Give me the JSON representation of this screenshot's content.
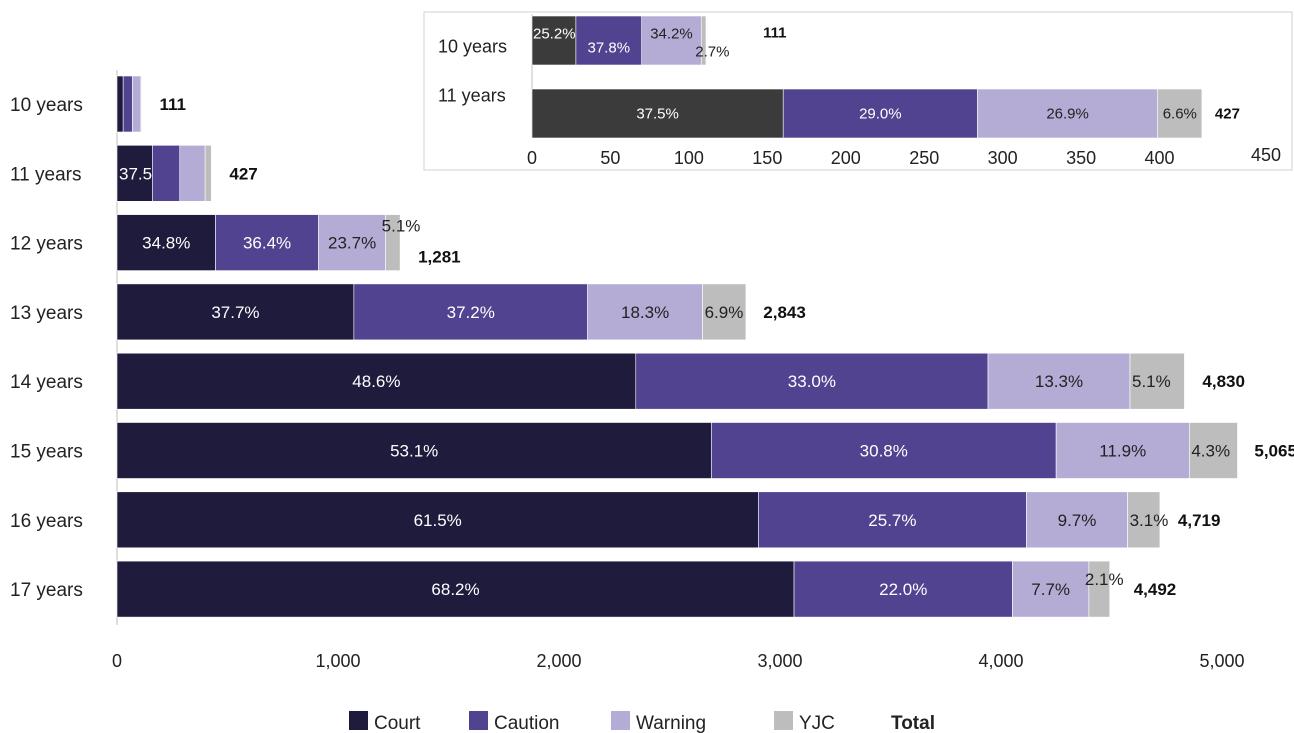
{
  "chart_data": [
    {
      "type": "bar",
      "orientation": "horizontal",
      "stacked": true,
      "categories": [
        "10 years",
        "11 years",
        "12 years",
        "13 years",
        "14 years",
        "15 years",
        "16 years",
        "17 years"
      ],
      "xlim": [
        0,
        5000
      ],
      "xticks": [
        "0",
        "1,000",
        "2,000",
        "3,000",
        "4,000",
        "5,000"
      ],
      "tick_values": [
        0,
        1000,
        2000,
        3000,
        4000,
        5000
      ],
      "grid": false,
      "legend_position": "bottom",
      "colors": {
        "Court": "#1f1b3d",
        "Caution": "#524391",
        "Warning": "#b5acd6",
        "YJC": "#bdbdbd"
      },
      "series": [
        {
          "name": "Court",
          "percent": [
            "",
            "37.5%",
            "34.8%",
            "37.7%",
            "48.6%",
            "53.1%",
            "61.5%",
            "68.2%"
          ],
          "percent_values": [
            25.2,
            37.5,
            34.8,
            37.7,
            48.6,
            53.1,
            61.5,
            68.2
          ]
        },
        {
          "name": "Caution",
          "percent": [
            "",
            "",
            "36.4%",
            "37.2%",
            "33.0%",
            "30.8%",
            "25.7%",
            "22.0%"
          ],
          "percent_values": [
            37.8,
            29.0,
            36.4,
            37.2,
            33.0,
            30.8,
            25.7,
            22.0
          ]
        },
        {
          "name": "Warning",
          "percent": [
            "",
            "",
            "23.7%",
            "18.3%",
            "13.3%",
            "11.9%",
            "9.7%",
            "7.7%"
          ],
          "percent_values": [
            34.2,
            26.9,
            23.7,
            18.3,
            13.3,
            11.9,
            9.7,
            7.7
          ]
        },
        {
          "name": "YJC",
          "percent": [
            "",
            "",
            "5.1%",
            "6.9%",
            "5.1%",
            "4.3%",
            "3.1%",
            "2.1%"
          ],
          "percent_values": [
            2.7,
            6.6,
            5.1,
            6.9,
            5.1,
            4.3,
            3.1,
            2.1
          ]
        }
      ],
      "totals": [
        111,
        427,
        1281,
        2843,
        4830,
        5065,
        4719,
        4492
      ],
      "total_labels": [
        "111",
        "427",
        "1,281",
        "2,843",
        "4,830",
        "5,065",
        "4,719",
        "4,492"
      ],
      "legend": [
        "Court",
        "Caution",
        "Warning",
        "YJC",
        "Total"
      ]
    },
    {
      "type": "bar",
      "orientation": "horizontal",
      "stacked": true,
      "role": "inset",
      "categories": [
        "10 years",
        "11 years"
      ],
      "xlim": [
        0,
        450
      ],
      "xticks": [
        "0",
        "50",
        "100",
        "150",
        "200",
        "250",
        "300",
        "350",
        "400",
        "450"
      ],
      "tick_values": [
        0,
        50,
        100,
        150,
        200,
        250,
        300,
        350,
        400,
        450
      ],
      "colors": {
        "Court": "#3b3b3b",
        "Caution": "#524391",
        "Warning": "#b5acd6",
        "YJC": "#bdbdbd"
      },
      "series": [
        {
          "name": "Court",
          "percent": [
            "25.2%",
            "37.5%"
          ],
          "percent_values": [
            25.2,
            37.5
          ]
        },
        {
          "name": "Caution",
          "percent": [
            "37.8%",
            "29.0%"
          ],
          "percent_values": [
            37.8,
            29.0
          ]
        },
        {
          "name": "Warning",
          "percent": [
            "34.2%",
            "26.9%"
          ],
          "percent_values": [
            34.2,
            26.9
          ]
        },
        {
          "name": "YJC",
          "percent": [
            "2.7%",
            "6.6%"
          ],
          "percent_values": [
            2.7,
            6.6
          ]
        }
      ],
      "totals": [
        111,
        427
      ],
      "total_labels": [
        "111",
        "427"
      ]
    }
  ]
}
